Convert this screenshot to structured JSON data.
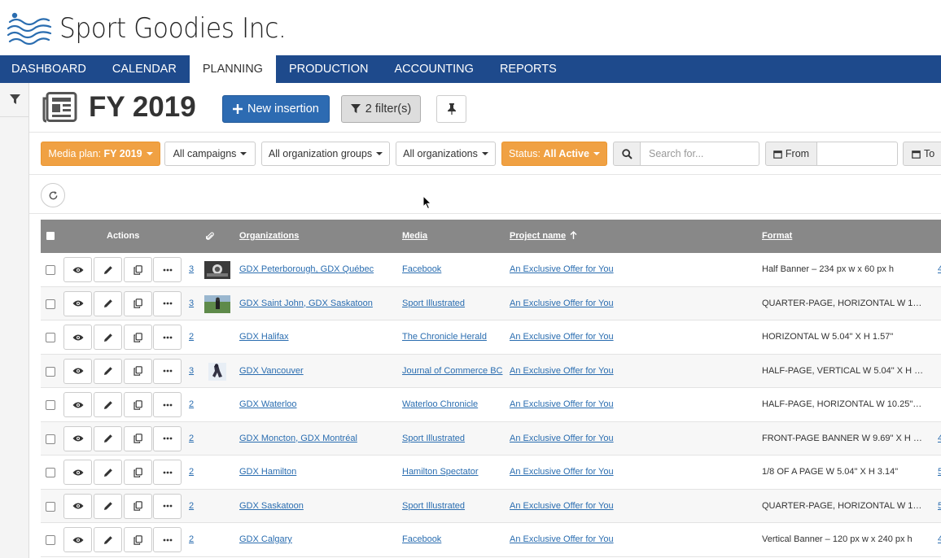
{
  "brand": {
    "name": "Sport Goodies Inc.",
    "color": "#1e4a8c"
  },
  "nav": [
    {
      "label": "DASHBOARD",
      "active": false
    },
    {
      "label": "CALENDAR",
      "active": false
    },
    {
      "label": "PLANNING",
      "active": true
    },
    {
      "label": "PRODUCTION",
      "active": false
    },
    {
      "label": "ACCOUNTING",
      "active": false
    },
    {
      "label": "REPORTS",
      "active": false
    }
  ],
  "page": {
    "title": "FY 2019",
    "new_insertion_label": "New insertion",
    "filters_label": "2 filter(s)"
  },
  "filters": {
    "media_plan_label": "Media plan:",
    "media_plan_value": "FY 2019",
    "campaigns": "All campaigns",
    "org_groups": "All organization groups",
    "organizations": "All organizations",
    "status_label": "Status:",
    "status_value": "All Active",
    "search_placeholder": "Search for...",
    "from_label": "From",
    "to_label": "To"
  },
  "table": {
    "headers": {
      "actions": "Actions",
      "organizations": "Organizations",
      "media": "Media",
      "project": "Project name",
      "format": "Format"
    },
    "rows": [
      {
        "count": "3",
        "thumb": "thumb-dark",
        "org": "GDX Peterborough, GDX Québec",
        "media": "Facebook",
        "project": "An Exclusive Offer for You",
        "format": "Half Banner – 234 px w x 60 px h",
        "extra": "4"
      },
      {
        "count": "3",
        "thumb": "thumb-green",
        "org": "GDX Saint John, GDX Saskatoon",
        "media": "Sport Illustrated",
        "project": "An Exclusive Offer for You",
        "format": "QUARTER-PAGE, HORIZONTAL W 1…",
        "extra": ""
      },
      {
        "count": "2",
        "thumb": "",
        "org": "GDX Halifax",
        "media": "The Chronicle Herald",
        "project": "An Exclusive Offer for You",
        "format": "HORIZONTAL W 5.04\" X H 1.57\"",
        "extra": ""
      },
      {
        "count": "3",
        "thumb": "thumb-player",
        "org": "GDX Vancouver",
        "media": "Journal of Commerce BC",
        "project": "An Exclusive Offer for You",
        "format": "HALF-PAGE, VERTICAL W 5.04\" X H …",
        "extra": ""
      },
      {
        "count": "2",
        "thumb": "",
        "org": "GDX Waterloo",
        "media": "Waterloo Chronicle",
        "project": "An Exclusive Offer for You",
        "format": "HALF-PAGE, HORIZONTAL W 10.25\"…",
        "extra": ""
      },
      {
        "count": "2",
        "thumb": "",
        "org": "GDX Moncton, GDX Montréal",
        "media": "Sport Illustrated",
        "project": "An Exclusive Offer for You",
        "format": "FRONT-PAGE BANNER W 9.69\" X H …",
        "extra": "4"
      },
      {
        "count": "2",
        "thumb": "",
        "org": "GDX Hamilton",
        "media": "Hamilton Spectator",
        "project": "An Exclusive Offer for You",
        "format": "1/8 OF A PAGE W 5.04\" X H 3.14\"",
        "extra": "5"
      },
      {
        "count": "2",
        "thumb": "",
        "org": "GDX Saskatoon",
        "media": "Sport Illustrated",
        "project": "An Exclusive Offer for You",
        "format": "QUARTER-PAGE, HORIZONTAL W 1…",
        "extra": "5"
      },
      {
        "count": "2",
        "thumb": "",
        "org": "GDX Calgary",
        "media": "Facebook",
        "project": "An Exclusive Offer for You",
        "format": "Vertical Banner – 120 px w x 240 px h",
        "extra": "4"
      }
    ]
  }
}
